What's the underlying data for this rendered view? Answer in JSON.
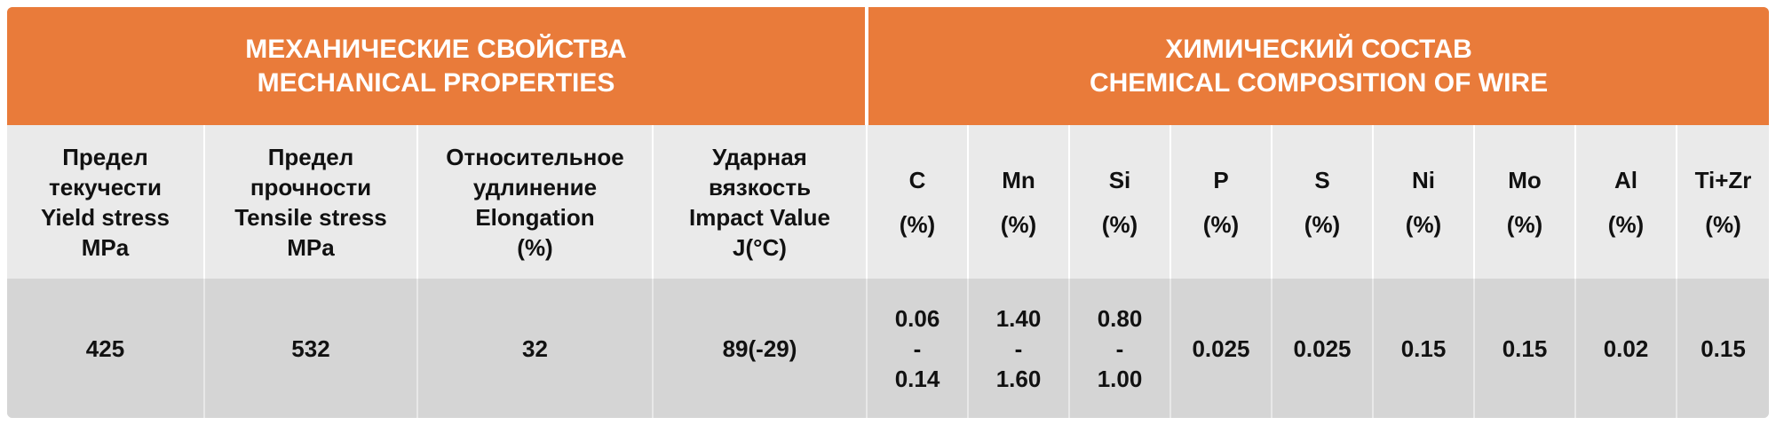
{
  "banner": {
    "mechanical": {
      "ru": "МЕХАНИЧЕСКИЕ СВОЙСТВА",
      "en": "MECHANICAL PROPERTIES"
    },
    "chemical": {
      "ru": "ХИМИЧЕСКИЙ СОСТАВ",
      "en": "CHEMICAL COMPOSITION OF WIRE"
    }
  },
  "mechanical_headers": [
    {
      "lines": [
        "Предел",
        "текучести",
        "Yield stress",
        "MPa"
      ]
    },
    {
      "lines": [
        "Предел",
        "прочности",
        "Tensile stress",
        "MPa"
      ]
    },
    {
      "lines": [
        "Относительное",
        "удлинение",
        "Elongation",
        "(%)"
      ]
    },
    {
      "lines": [
        "Ударная",
        "вязкость",
        "Impact Value",
        "J(°C)"
      ]
    }
  ],
  "chemical_headers": [
    {
      "symbol": "C",
      "unit": "(%)"
    },
    {
      "symbol": "Mn",
      "unit": "(%)"
    },
    {
      "symbol": "Si",
      "unit": "(%)"
    },
    {
      "symbol": "P",
      "unit": "(%)"
    },
    {
      "symbol": "S",
      "unit": "(%)"
    },
    {
      "symbol": "Ni",
      "unit": "(%)"
    },
    {
      "symbol": "Mo",
      "unit": "(%)"
    },
    {
      "symbol": "Al",
      "unit": "(%)"
    },
    {
      "symbol": "Ti+Zr",
      "unit": "(%)"
    }
  ],
  "mechanical_values": [
    "425",
    "532",
    "32",
    "89(-29)"
  ],
  "chemical_values": [
    {
      "min": "0.06",
      "sep": "-",
      "max": "0.14"
    },
    {
      "min": "1.40",
      "sep": "-",
      "max": "1.60"
    },
    {
      "min": "0.80",
      "sep": "-",
      "max": "1.00"
    },
    {
      "value": "0.025"
    },
    {
      "value": "0.025"
    },
    {
      "value": "0.15"
    },
    {
      "value": "0.15"
    },
    {
      "value": "0.02"
    },
    {
      "value": "0.15"
    }
  ],
  "colors": {
    "accent": "#e97b3a",
    "header_bg": "#eaeaea",
    "value_bg": "#d5d5d5"
  }
}
